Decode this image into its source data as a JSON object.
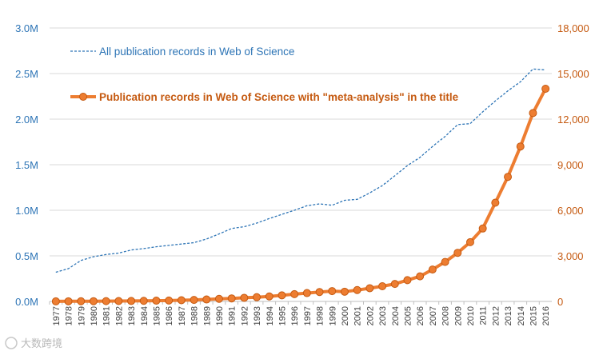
{
  "chart_data": {
    "type": "line",
    "title": "",
    "xlabel": "",
    "ylabel_left": "",
    "ylabel_right": "",
    "categories": [
      "1977",
      "1978",
      "1979",
      "1980",
      "1981",
      "1982",
      "1983",
      "1984",
      "1985",
      "1986",
      "1987",
      "1988",
      "1989",
      "1990",
      "1991",
      "1992",
      "1993",
      "1994",
      "1995",
      "1996",
      "1997",
      "1998",
      "1999",
      "2000",
      "2001",
      "2002",
      "2003",
      "2004",
      "2005",
      "2006",
      "2007",
      "2008",
      "2009",
      "2010",
      "2011",
      "2012",
      "2013",
      "2014",
      "2015",
      "2016"
    ],
    "axes": {
      "left": {
        "range": [
          0,
          3000000
        ],
        "ticks": [
          0,
          500000,
          1000000,
          1500000,
          2000000,
          2500000,
          3000000
        ],
        "tick_labels": [
          "0.0M",
          "0.5M",
          "1.0M",
          "1.5M",
          "2.0M",
          "2.5M",
          "3.0M"
        ]
      },
      "right": {
        "range": [
          0,
          18000
        ],
        "ticks": [
          0,
          3000,
          6000,
          9000,
          12000,
          15000,
          18000
        ],
        "tick_labels": [
          "0",
          "3,000",
          "6,000",
          "9,000",
          "12,000",
          "15,000",
          "18,000"
        ]
      }
    },
    "grid": true,
    "series": [
      {
        "name": "All publication records in Web of Science",
        "axis": "left",
        "style": "dashed",
        "color": "#2e75b6",
        "values": [
          320000,
          360000,
          450000,
          490000,
          515000,
          530000,
          565000,
          580000,
          600000,
          615000,
          630000,
          645000,
          685000,
          740000,
          800000,
          820000,
          860000,
          910000,
          955000,
          1000000,
          1050000,
          1070000,
          1055000,
          1110000,
          1120000,
          1190000,
          1270000,
          1380000,
          1490000,
          1580000,
          1700000,
          1810000,
          1940000,
          1950000,
          2080000,
          2200000,
          2310000,
          2410000,
          2550000,
          2540000
        ]
      },
      {
        "name": "Publication records in Web of Science with \"meta-analysis\" in the title",
        "axis": "right",
        "style": "solid-markers",
        "color": "#ed7d31",
        "values": [
          5,
          8,
          12,
          15,
          20,
          25,
          30,
          40,
          50,
          60,
          80,
          100,
          130,
          170,
          200,
          240,
          280,
          330,
          400,
          480,
          550,
          620,
          680,
          640,
          750,
          870,
          1000,
          1150,
          1400,
          1650,
          2100,
          2600,
          3200,
          3900,
          4800,
          6500,
          8200,
          10200,
          12400,
          14000
        ]
      }
    ],
    "legend_placement": "top-left, inside plot"
  },
  "watermark": "大数跨境"
}
